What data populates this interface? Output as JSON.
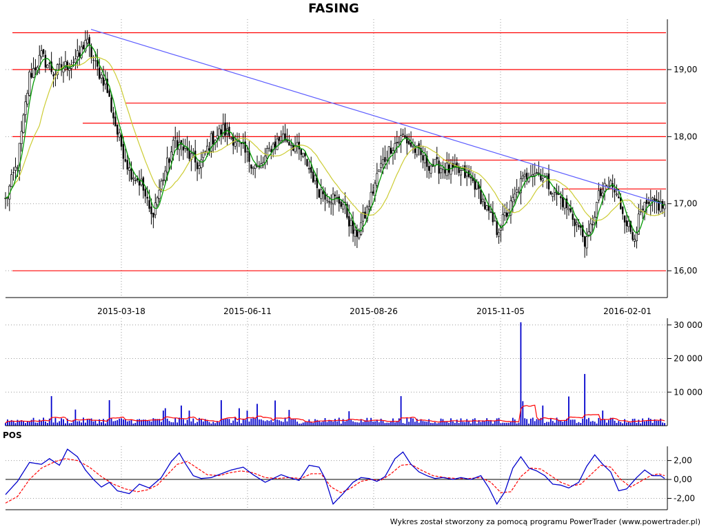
{
  "chart_data": [
    {
      "type": "candlestick",
      "title": "FASING",
      "x_tick_labels": [
        "2015-03-18",
        "2015-06-11",
        "2015-08-26",
        "2015-11-05",
        "2016-02-01"
      ],
      "y_ticks": [
        16.0,
        17.0,
        18.0,
        19.0
      ],
      "y_tick_labels": [
        "16,00",
        "17,00",
        "18,00",
        "19,00"
      ],
      "ylim": [
        15.6,
        19.75
      ],
      "grid": true,
      "colors": {
        "candles": "#000000",
        "support_resistance": "#ff0000",
        "trendline": "#5b5bff",
        "ma_fast": "#009900",
        "ma_slow": "#cccc33"
      },
      "horizontal_levels": [
        19.55,
        19.0,
        18.5,
        18.2,
        18.0,
        17.65,
        17.22,
        16.0
      ],
      "trendline": {
        "start_value": 19.6,
        "end_value": 17.0
      },
      "close_keypoints": [
        [
          0,
          17.05
        ],
        [
          6,
          17.6
        ],
        [
          12,
          18.9
        ],
        [
          18,
          19.2
        ],
        [
          24,
          18.95
        ],
        [
          30,
          19.05
        ],
        [
          37,
          19.2
        ],
        [
          40,
          19.45
        ],
        [
          45,
          19.05
        ],
        [
          50,
          18.8
        ],
        [
          56,
          18.05
        ],
        [
          62,
          17.5
        ],
        [
          68,
          17.3
        ],
        [
          73,
          16.8
        ],
        [
          79,
          17.4
        ],
        [
          85,
          17.95
        ],
        [
          91,
          17.75
        ],
        [
          97,
          17.55
        ],
        [
          103,
          17.95
        ],
        [
          109,
          18.1
        ],
        [
          115,
          17.95
        ],
        [
          121,
          17.7
        ],
        [
          127,
          17.5
        ],
        [
          133,
          17.85
        ],
        [
          139,
          18.0
        ],
        [
          145,
          17.85
        ],
        [
          151,
          17.6
        ],
        [
          157,
          17.2
        ],
        [
          163,
          17.1
        ],
        [
          169,
          17.0
        ],
        [
          175,
          16.5
        ],
        [
          181,
          16.9
        ],
        [
          187,
          17.5
        ],
        [
          193,
          17.85
        ],
        [
          199,
          18.0
        ],
        [
          205,
          17.8
        ],
        [
          211,
          17.6
        ],
        [
          217,
          17.55
        ],
        [
          223,
          17.5
        ],
        [
          229,
          17.45
        ],
        [
          235,
          17.3
        ],
        [
          241,
          16.9
        ],
        [
          246,
          16.6
        ],
        [
          252,
          16.9
        ],
        [
          258,
          17.3
        ],
        [
          263,
          17.5
        ],
        [
          268,
          17.45
        ],
        [
          274,
          17.2
        ],
        [
          280,
          17.0
        ],
        [
          286,
          16.7
        ],
        [
          291,
          16.4
        ],
        [
          297,
          17.1
        ],
        [
          303,
          17.3
        ],
        [
          309,
          16.9
        ],
        [
          314,
          16.5
        ],
        [
          319,
          16.9
        ],
        [
          325,
          17.0
        ],
        [
          330,
          16.95
        ]
      ]
    },
    {
      "type": "bar",
      "y_ticks": [
        10000,
        20000,
        30000
      ],
      "y_tick_labels": [
        "10 000",
        "20 000",
        "30 000"
      ],
      "ylim": [
        0,
        32000
      ],
      "grid": true,
      "colors": {
        "bars": "#0000cc",
        "average": "#ff0000"
      },
      "spikes": [
        [
          6,
          3500
        ],
        [
          74,
          8800
        ],
        [
          108,
          4800
        ],
        [
          158,
          7600
        ],
        [
          236,
          4500
        ],
        [
          239,
          5200
        ],
        [
          263,
          6000
        ],
        [
          274,
          4500
        ],
        [
          322,
          7600
        ],
        [
          346,
          5200
        ],
        [
          358,
          4500
        ],
        [
          373,
          6500
        ],
        [
          398,
          7500
        ],
        [
          419,
          4700
        ],
        [
          507,
          4300
        ],
        [
          582,
          8800
        ],
        [
          755,
          30800
        ],
        [
          759,
          7300
        ],
        [
          787,
          6000
        ],
        [
          825,
          8700
        ],
        [
          848,
          15400
        ],
        [
          874,
          4500
        ]
      ]
    },
    {
      "type": "line",
      "title": "POS",
      "y_ticks": [
        -2.0,
        0.0,
        2.0
      ],
      "y_tick_labels": [
        "-2,00",
        "0,00",
        "2,00"
      ],
      "ylim": [
        -3.2,
        3.5
      ],
      "grid": true,
      "colors": {
        "pos": "#0000cc",
        "signal": "#ff0000"
      },
      "pos_keypoints": [
        [
          0,
          -1.6
        ],
        [
          6,
          -0.2
        ],
        [
          12,
          1.8
        ],
        [
          18,
          1.6
        ],
        [
          22,
          2.2
        ],
        [
          27,
          1.5
        ],
        [
          31,
          3.2
        ],
        [
          36,
          2.4
        ],
        [
          40,
          1.0
        ],
        [
          44,
          0.0
        ],
        [
          48,
          -0.8
        ],
        [
          52,
          -0.3
        ],
        [
          56,
          -1.2
        ],
        [
          62,
          -1.5
        ],
        [
          67,
          -0.5
        ],
        [
          72,
          -0.9
        ],
        [
          78,
          0.2
        ],
        [
          83,
          1.9
        ],
        [
          87,
          2.8
        ],
        [
          90,
          1.7
        ],
        [
          94,
          0.4
        ],
        [
          98,
          0.1
        ],
        [
          103,
          0.2
        ],
        [
          108,
          0.6
        ],
        [
          113,
          1.0
        ],
        [
          119,
          1.3
        ],
        [
          124,
          0.5
        ],
        [
          130,
          -0.3
        ],
        [
          134,
          0.1
        ],
        [
          138,
          0.5
        ],
        [
          142,
          0.2
        ],
        [
          147,
          -0.1
        ],
        [
          152,
          1.5
        ],
        [
          157,
          1.3
        ],
        [
          160,
          0.1
        ],
        [
          164,
          -2.6
        ],
        [
          169,
          -1.5
        ],
        [
          174,
          -0.3
        ],
        [
          178,
          0.2
        ],
        [
          182,
          0.1
        ],
        [
          186,
          -0.2
        ],
        [
          190,
          0.3
        ],
        [
          195,
          2.2
        ],
        [
          199,
          2.9
        ],
        [
          203,
          1.6
        ],
        [
          207,
          0.8
        ],
        [
          211,
          0.4
        ],
        [
          215,
          0.1
        ],
        [
          219,
          0.2
        ],
        [
          224,
          0.0
        ],
        [
          228,
          0.2
        ],
        [
          233,
          0.0
        ],
        [
          238,
          0.4
        ],
        [
          242,
          -0.9
        ],
        [
          246,
          -2.6
        ],
        [
          250,
          -1.3
        ],
        [
          254,
          1.2
        ],
        [
          258,
          2.4
        ],
        [
          262,
          1.2
        ],
        [
          266,
          0.9
        ],
        [
          270,
          0.4
        ],
        [
          274,
          -0.5
        ],
        [
          278,
          -0.6
        ],
        [
          282,
          -0.9
        ],
        [
          287,
          -0.3
        ],
        [
          291,
          1.4
        ],
        [
          295,
          2.6
        ],
        [
          299,
          1.6
        ],
        [
          303,
          0.8
        ],
        [
          307,
          -1.2
        ],
        [
          311,
          -1.0
        ],
        [
          316,
          0.2
        ],
        [
          320,
          1.0
        ],
        [
          324,
          0.4
        ],
        [
          328,
          0.4
        ],
        [
          330,
          0.1
        ]
      ],
      "signal_keypoints": [
        [
          0,
          -2.5
        ],
        [
          6,
          -1.8
        ],
        [
          12,
          0.0
        ],
        [
          18,
          1.2
        ],
        [
          25,
          1.9
        ],
        [
          30,
          2.2
        ],
        [
          36,
          2.0
        ],
        [
          42,
          1.3
        ],
        [
          48,
          0.3
        ],
        [
          54,
          -0.5
        ],
        [
          60,
          -1.0
        ],
        [
          66,
          -1.3
        ],
        [
          71,
          -1.1
        ],
        [
          76,
          -0.6
        ],
        [
          81,
          0.5
        ],
        [
          86,
          1.6
        ],
        [
          91,
          1.9
        ],
        [
          96,
          1.2
        ],
        [
          101,
          0.5
        ],
        [
          107,
          0.4
        ],
        [
          112,
          0.7
        ],
        [
          118,
          0.9
        ],
        [
          124,
          0.7
        ],
        [
          130,
          0.2
        ],
        [
          136,
          0.1
        ],
        [
          142,
          0.2
        ],
        [
          148,
          0.1
        ],
        [
          153,
          0.6
        ],
        [
          158,
          0.6
        ],
        [
          163,
          -0.8
        ],
        [
          168,
          -1.4
        ],
        [
          173,
          -0.9
        ],
        [
          178,
          -0.2
        ],
        [
          183,
          0.0
        ],
        [
          188,
          -0.1
        ],
        [
          193,
          0.6
        ],
        [
          198,
          1.5
        ],
        [
          203,
          1.6
        ],
        [
          208,
          1.0
        ],
        [
          214,
          0.4
        ],
        [
          220,
          0.2
        ],
        [
          226,
          0.1
        ],
        [
          232,
          0.1
        ],
        [
          238,
          0.2
        ],
        [
          243,
          -0.3
        ],
        [
          248,
          -1.4
        ],
        [
          253,
          -1.3
        ],
        [
          258,
          0.3
        ],
        [
          263,
          1.2
        ],
        [
          268,
          1.1
        ],
        [
          273,
          0.4
        ],
        [
          278,
          -0.3
        ],
        [
          283,
          -0.7
        ],
        [
          288,
          -0.5
        ],
        [
          293,
          0.5
        ],
        [
          298,
          1.5
        ],
        [
          303,
          1.3
        ],
        [
          308,
          0.0
        ],
        [
          313,
          -0.8
        ],
        [
          318,
          -0.2
        ],
        [
          323,
          0.4
        ],
        [
          327,
          0.6
        ],
        [
          330,
          0.4
        ]
      ]
    }
  ],
  "footer_text": "Wykres został stworzony za pomocą programu PowerTrader (www.powertrader.pl)"
}
